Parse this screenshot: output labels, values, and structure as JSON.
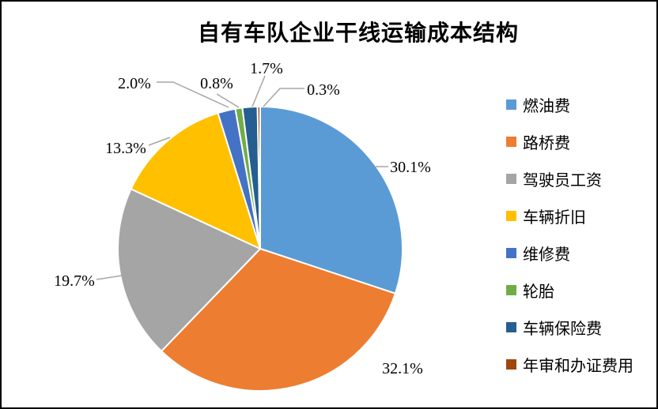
{
  "window": {
    "background_color": "#ffffff",
    "border_color": "#000000"
  },
  "chart_data": {
    "type": "pie",
    "title": "自有车队企业干线运输成本结构",
    "legend_position": "right",
    "start_angle_deg": 0,
    "direction": "clockwise",
    "leader_line_color": "#A6A6A6",
    "slices": [
      {
        "label": "燃油费",
        "value": 30.1,
        "pct_label": "30.1%",
        "color": "#5B9BD5"
      },
      {
        "label": "路桥费",
        "value": 32.1,
        "pct_label": "32.1%",
        "color": "#ED7D31"
      },
      {
        "label": "驾驶员工资",
        "value": 19.7,
        "pct_label": "19.7%",
        "color": "#A5A5A5"
      },
      {
        "label": "车辆折旧",
        "value": 13.3,
        "pct_label": "13.3%",
        "color": "#FFC000"
      },
      {
        "label": "维修费",
        "value": 2.0,
        "pct_label": "2.0%",
        "color": "#4472C4"
      },
      {
        "label": "轮胎",
        "value": 0.8,
        "pct_label": "0.8%",
        "color": "#70AD47"
      },
      {
        "label": "车辆保险费",
        "value": 1.7,
        "pct_label": "1.7%",
        "color": "#255E91"
      },
      {
        "label": "年审和办证费用",
        "value": 0.3,
        "pct_label": "0.3%",
        "color": "#9E480E"
      }
    ]
  }
}
